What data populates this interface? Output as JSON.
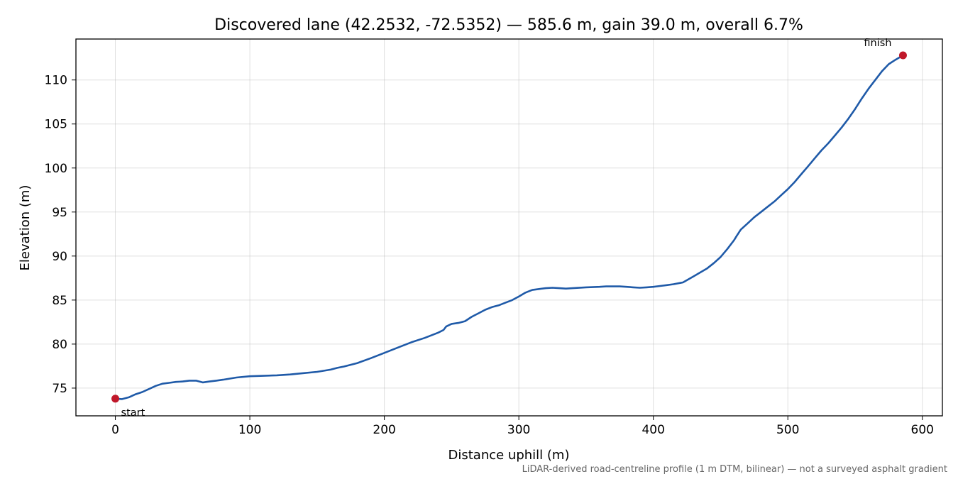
{
  "chart_data": {
    "type": "line",
    "title": "Discovered lane (42.2532, -72.5352) — 585.6 m, gain 39.0 m, overall 6.7%",
    "xlabel": "Distance uphill (m)",
    "ylabel": "Elevation (m)",
    "footnote": "LiDAR-derived road-centreline profile (1 m DTM, bilinear) — not a surveyed asphalt gradient",
    "xlim": [
      -29.3,
      614.9
    ],
    "ylim": [
      71.85,
      114.65
    ],
    "x_ticks": [
      0,
      100,
      200,
      300,
      400,
      500,
      600
    ],
    "y_ticks": [
      75,
      80,
      85,
      90,
      95,
      100,
      105,
      110
    ],
    "grid": true,
    "colors": {
      "line": "#1f5aa8",
      "marker": "#c0182a"
    },
    "series": [
      {
        "x": [
          0,
          5,
          10,
          15,
          20,
          25,
          30,
          35,
          40,
          45,
          50,
          55,
          60,
          65,
          70,
          75,
          80,
          90,
          100,
          110,
          120,
          130,
          140,
          150,
          160,
          165,
          170,
          180,
          190,
          200,
          210,
          220,
          230,
          240,
          244,
          246,
          250,
          255,
          260,
          265,
          270,
          275,
          280,
          285,
          290,
          295,
          300,
          305,
          310,
          315,
          320,
          325,
          330,
          335,
          340,
          350,
          360,
          365,
          370,
          375,
          380,
          385,
          390,
          395,
          400,
          405,
          410,
          415,
          420,
          422,
          430,
          440,
          445,
          450,
          455,
          460,
          462,
          465,
          470,
          475,
          480,
          485,
          490,
          495,
          500,
          505,
          510,
          515,
          520,
          525,
          530,
          535,
          540,
          545,
          550,
          555,
          560,
          565,
          570,
          575,
          580,
          585.6
        ],
        "y": [
          73.8,
          73.75,
          73.95,
          74.3,
          74.55,
          74.9,
          75.25,
          75.5,
          75.6,
          75.7,
          75.75,
          75.85,
          75.85,
          75.65,
          75.75,
          75.85,
          75.95,
          76.2,
          76.35,
          76.4,
          76.45,
          76.55,
          76.7,
          76.85,
          77.1,
          77.3,
          77.45,
          77.85,
          78.4,
          79.0,
          79.6,
          80.2,
          80.7,
          81.3,
          81.6,
          82.0,
          82.3,
          82.4,
          82.6,
          83.1,
          83.5,
          83.9,
          84.2,
          84.4,
          84.7,
          85.0,
          85.4,
          85.85,
          86.15,
          86.25,
          86.35,
          86.4,
          86.35,
          86.3,
          86.35,
          86.45,
          86.5,
          86.55,
          86.55,
          86.55,
          86.5,
          86.45,
          86.4,
          86.45,
          86.5,
          86.6,
          86.7,
          86.8,
          86.95,
          87.0,
          87.7,
          88.6,
          89.2,
          89.9,
          90.8,
          91.8,
          92.3,
          93.0,
          93.7,
          94.4,
          95.0,
          95.6,
          96.2,
          96.9,
          97.6,
          98.4,
          99.3,
          100.2,
          101.1,
          102.0,
          102.8,
          103.7,
          104.6,
          105.6,
          106.7,
          107.9,
          109.0,
          110.0,
          111.0,
          111.8,
          112.3,
          112.8
        ]
      }
    ],
    "annotations": [
      {
        "text": "start",
        "x": 0,
        "y": 73.8
      },
      {
        "text": "finish",
        "x": 585.6,
        "y": 112.8
      }
    ]
  }
}
